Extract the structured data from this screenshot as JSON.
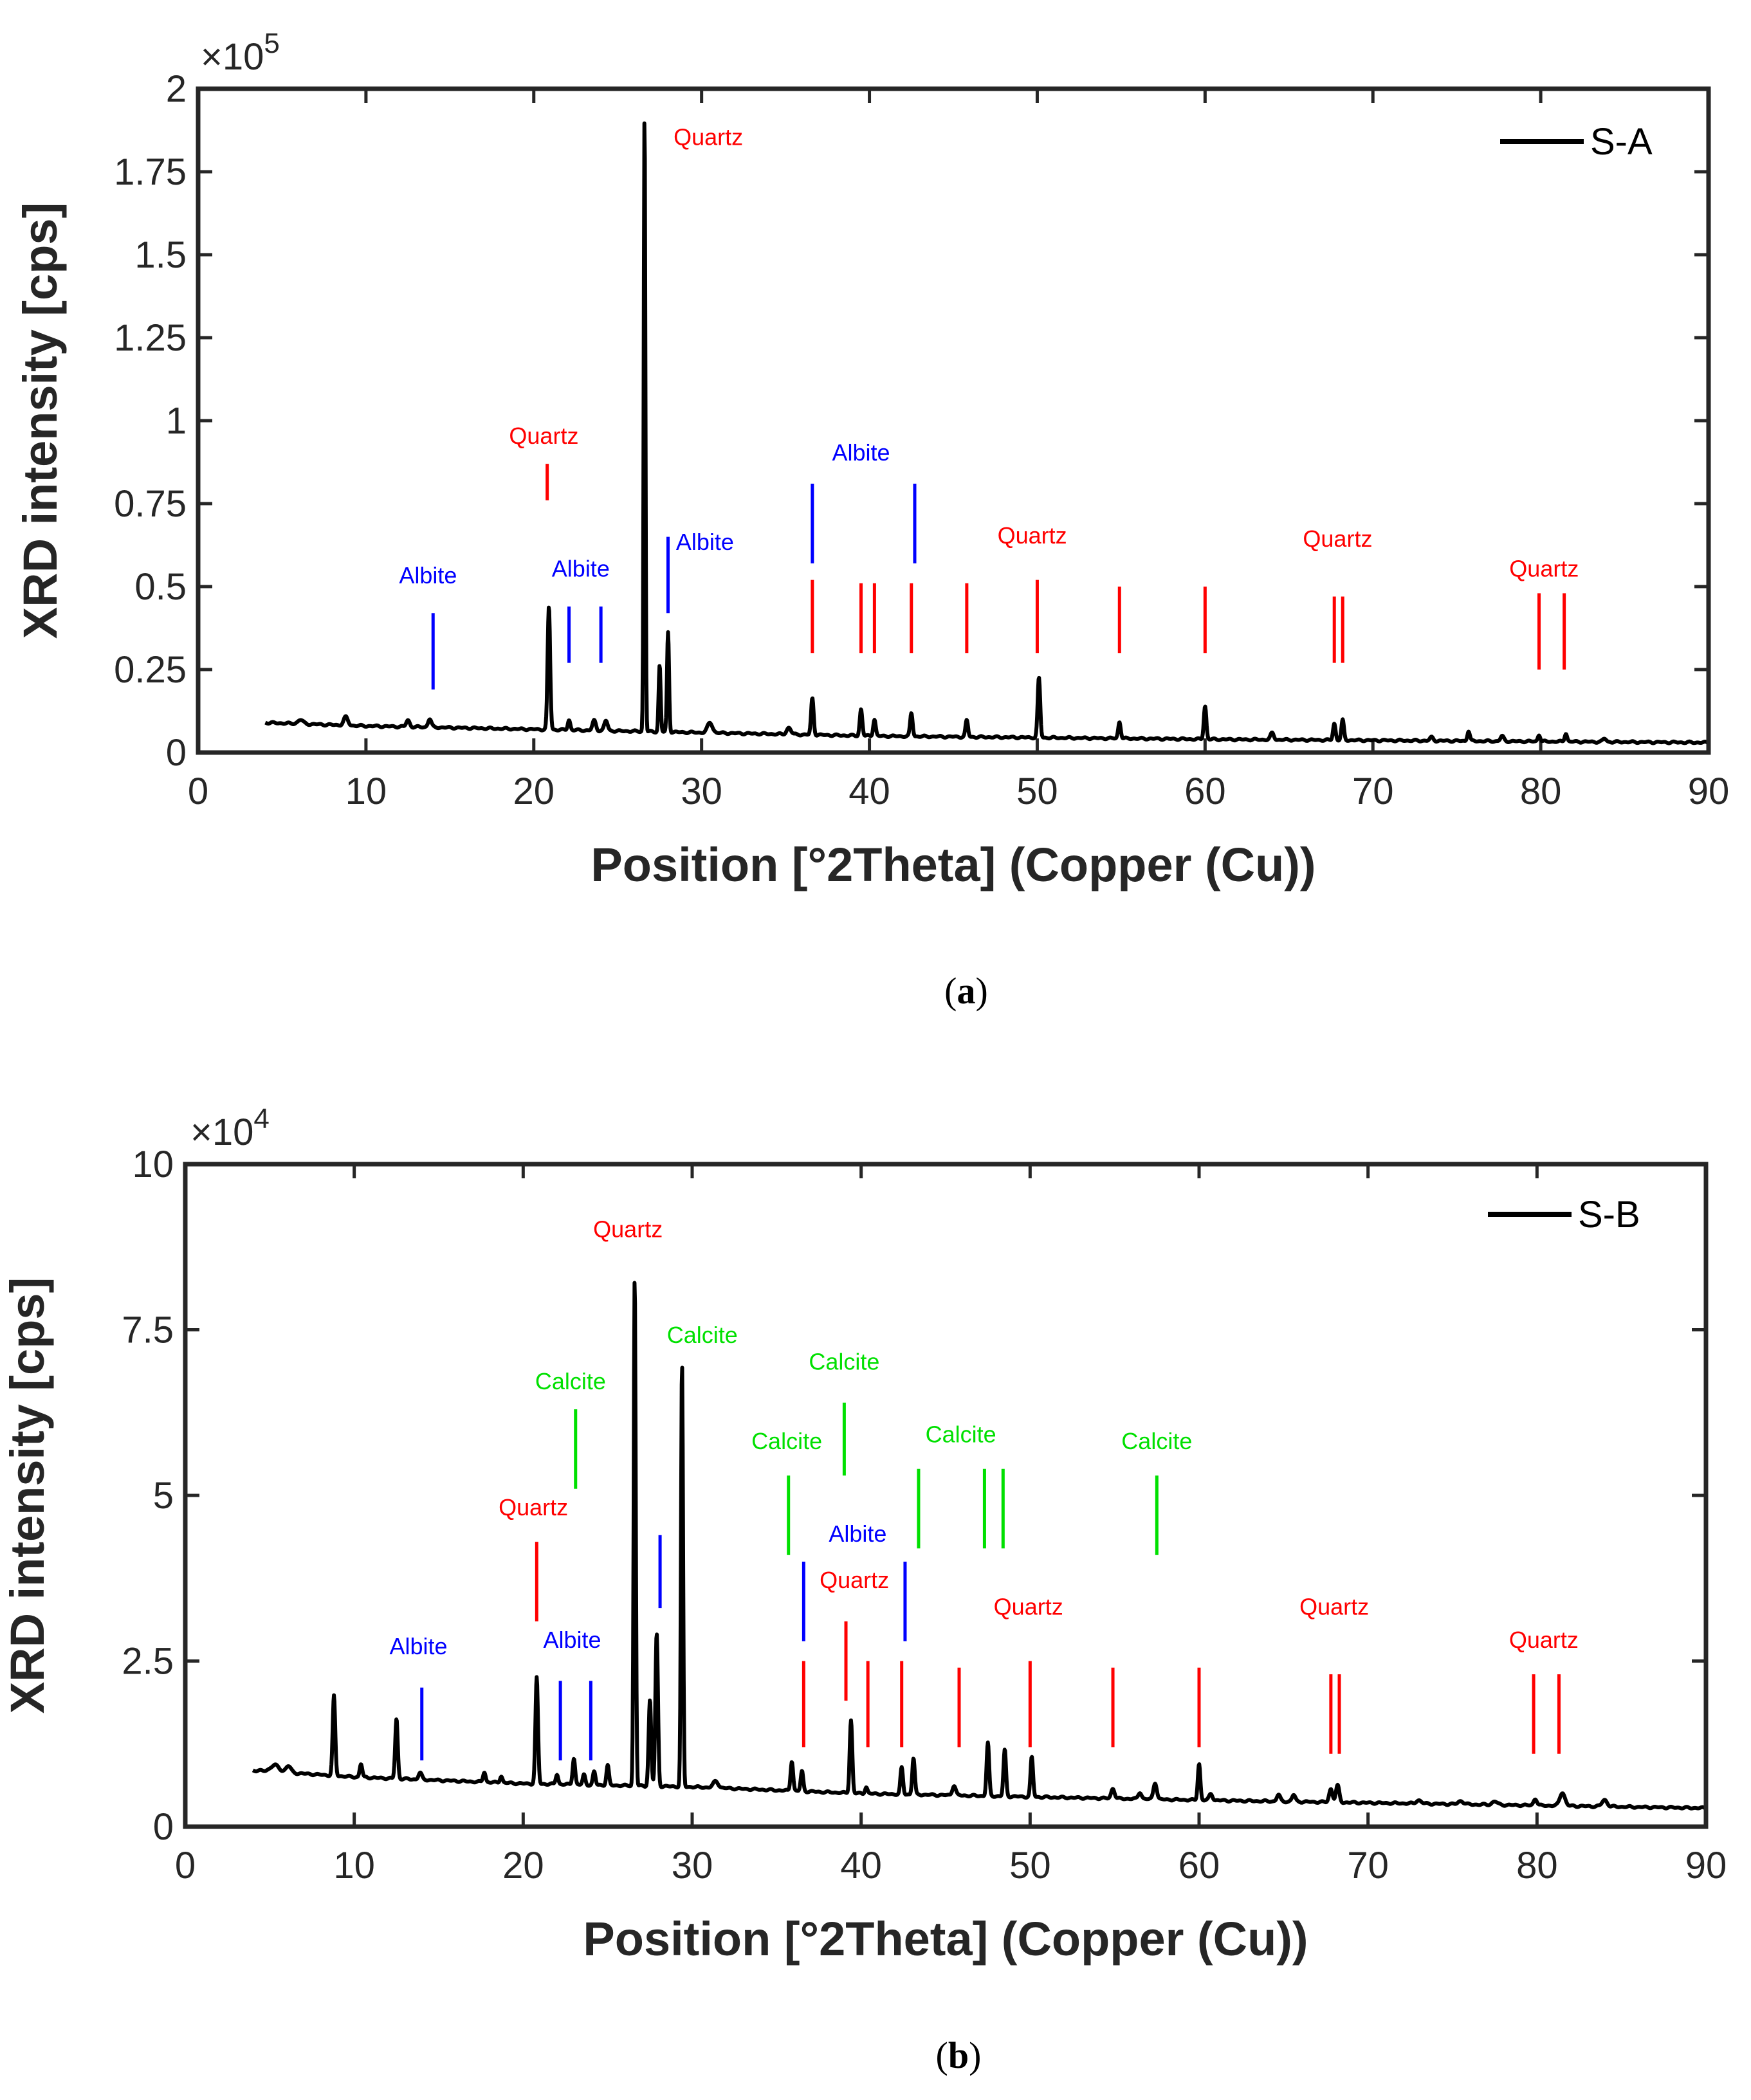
{
  "colors": {
    "quartz": "#ff0000",
    "albite": "#0000ff",
    "calcite": "#00e000",
    "trace": "#000000"
  },
  "chart_data": [
    {
      "type": "line",
      "panel": "a",
      "caption_letter": "a",
      "xlabel": "Position [°2Theta] (Copper (Cu))",
      "ylabel": "XRD intensity [cps]",
      "exponent_base": "×10",
      "exponent_power": "5",
      "xlim": [
        0,
        90
      ],
      "ylim": [
        0,
        2
      ],
      "xticks": [
        0,
        10,
        20,
        30,
        40,
        50,
        60,
        70,
        80,
        90
      ],
      "yticks": [
        0,
        0.25,
        0.5,
        0.75,
        1,
        1.25,
        1.5,
        1.75,
        2
      ],
      "ytick_labels": [
        "0",
        "0.25",
        "0.5",
        "0.75",
        "1",
        "1.25",
        "1.5",
        "1.75",
        "2"
      ],
      "series": [
        {
          "name": "S-A",
          "baseline": [
            [
              4,
              0.09
            ],
            [
              10,
              0.08
            ],
            [
              20,
              0.07
            ],
            [
              30,
              0.06
            ],
            [
              40,
              0.05
            ],
            [
              60,
              0.04
            ],
            [
              90,
              0.03
            ]
          ],
          "peaks": [
            [
              6.1,
              0.012,
              0.3
            ],
            [
              8.8,
              0.025,
              0.25
            ],
            [
              12.5,
              0.02,
              0.2
            ],
            [
              13.8,
              0.025,
              0.2
            ],
            [
              20.9,
              0.37,
              0.15
            ],
            [
              22.1,
              0.03,
              0.15
            ],
            [
              23.6,
              0.03,
              0.2
            ],
            [
              24.3,
              0.03,
              0.2
            ],
            [
              26.6,
              1.87,
              0.1
            ],
            [
              27.5,
              0.2,
              0.12
            ],
            [
              28.0,
              0.3,
              0.12
            ],
            [
              30.5,
              0.03,
              0.3
            ],
            [
              35.2,
              0.02,
              0.25
            ],
            [
              36.6,
              0.11,
              0.15
            ],
            [
              39.5,
              0.08,
              0.15
            ],
            [
              40.3,
              0.05,
              0.15
            ],
            [
              42.5,
              0.07,
              0.15
            ],
            [
              45.8,
              0.05,
              0.15
            ],
            [
              50.1,
              0.18,
              0.15
            ],
            [
              54.9,
              0.05,
              0.15
            ],
            [
              60.0,
              0.1,
              0.15
            ],
            [
              64.0,
              0.02,
              0.2
            ],
            [
              67.7,
              0.05,
              0.15
            ],
            [
              68.2,
              0.06,
              0.15
            ],
            [
              73.5,
              0.01,
              0.2
            ],
            [
              75.7,
              0.03,
              0.15
            ],
            [
              77.7,
              0.015,
              0.2
            ],
            [
              79.9,
              0.02,
              0.15
            ],
            [
              81.5,
              0.025,
              0.15
            ],
            [
              83.8,
              0.01,
              0.2
            ]
          ]
        }
      ],
      "markers": [
        {
          "mineral": "Albite",
          "x": 14.0,
          "y0": 0.19,
          "y1": 0.42
        },
        {
          "mineral": "Albite",
          "x": 22.1,
          "y0": 0.27,
          "y1": 0.44
        },
        {
          "mineral": "Albite",
          "x": 24.0,
          "y0": 0.27,
          "y1": 0.44
        },
        {
          "mineral": "Albite",
          "x": 28.0,
          "y0": 0.42,
          "y1": 0.65
        },
        {
          "mineral": "Albite",
          "x": 36.6,
          "y0": 0.57,
          "y1": 0.81
        },
        {
          "mineral": "Albite",
          "x": 42.7,
          "y0": 0.57,
          "y1": 0.81
        },
        {
          "mineral": "Quartz",
          "x": 20.8,
          "y0": 0.76,
          "y1": 0.87
        },
        {
          "mineral": "Quartz",
          "x": 36.6,
          "y0": 0.3,
          "y1": 0.52
        },
        {
          "mineral": "Quartz",
          "x": 39.5,
          "y0": 0.3,
          "y1": 0.51
        },
        {
          "mineral": "Quartz",
          "x": 40.3,
          "y0": 0.3,
          "y1": 0.51
        },
        {
          "mineral": "Quartz",
          "x": 42.5,
          "y0": 0.3,
          "y1": 0.51
        },
        {
          "mineral": "Quartz",
          "x": 45.8,
          "y0": 0.3,
          "y1": 0.51
        },
        {
          "mineral": "Quartz",
          "x": 50.0,
          "y0": 0.3,
          "y1": 0.52
        },
        {
          "mineral": "Quartz",
          "x": 54.9,
          "y0": 0.3,
          "y1": 0.5
        },
        {
          "mineral": "Quartz",
          "x": 60.0,
          "y0": 0.3,
          "y1": 0.5
        },
        {
          "mineral": "Quartz",
          "x": 67.7,
          "y0": 0.27,
          "y1": 0.47
        },
        {
          "mineral": "Quartz",
          "x": 68.2,
          "y0": 0.27,
          "y1": 0.47
        },
        {
          "mineral": "Quartz",
          "x": 79.9,
          "y0": 0.25,
          "y1": 0.48
        },
        {
          "mineral": "Quartz",
          "x": 81.4,
          "y0": 0.25,
          "y1": 0.48
        }
      ],
      "annotations": [
        {
          "text": "Quartz",
          "mineral": "Quartz",
          "x": 30.4,
          "y": 1.83
        },
        {
          "text": "Quartz",
          "mineral": "Quartz",
          "x": 20.6,
          "y": 0.93
        },
        {
          "text": "Albite",
          "mineral": "Albite",
          "x": 13.7,
          "y": 0.51
        },
        {
          "text": "Albite",
          "mineral": "Albite",
          "x": 22.8,
          "y": 0.53
        },
        {
          "text": "Albite",
          "mineral": "Albite",
          "x": 30.2,
          "y": 0.61
        },
        {
          "text": "Albite",
          "mineral": "Albite",
          "x": 39.5,
          "y": 0.88
        },
        {
          "text": "Quartz",
          "mineral": "Quartz",
          "x": 49.7,
          "y": 0.63
        },
        {
          "text": "Quartz",
          "mineral": "Quartz",
          "x": 67.9,
          "y": 0.62
        },
        {
          "text": "Quartz",
          "mineral": "Quartz",
          "x": 80.2,
          "y": 0.53
        }
      ]
    },
    {
      "type": "line",
      "panel": "b",
      "caption_letter": "b",
      "xlabel": "Position [°2Theta] (Copper (Cu))",
      "ylabel": "XRD intensity [cps]",
      "exponent_base": "×10",
      "exponent_power": "4",
      "xlim": [
        0,
        90
      ],
      "ylim": [
        0,
        10
      ],
      "xticks": [
        0,
        10,
        20,
        30,
        40,
        50,
        60,
        70,
        80,
        90
      ],
      "yticks": [
        0,
        2.5,
        5,
        7.5,
        10
      ],
      "ytick_labels": [
        "0",
        "2.5",
        "5",
        "7.5",
        "10"
      ],
      "series": [
        {
          "name": "S-B",
          "baseline": [
            [
              4,
              0.85
            ],
            [
              10,
              0.75
            ],
            [
              20,
              0.65
            ],
            [
              30,
              0.6
            ],
            [
              40,
              0.5
            ],
            [
              60,
              0.4
            ],
            [
              90,
              0.28
            ]
          ],
          "peaks": [
            [
              5.3,
              0.1,
              0.5
            ],
            [
              6.1,
              0.1,
              0.3
            ],
            [
              8.8,
              1.2,
              0.15
            ],
            [
              10.4,
              0.2,
              0.15
            ],
            [
              12.5,
              0.9,
              0.15
            ],
            [
              13.9,
              0.1,
              0.2
            ],
            [
              17.7,
              0.15,
              0.15
            ],
            [
              18.7,
              0.1,
              0.15
            ],
            [
              20.8,
              1.6,
              0.15
            ],
            [
              22.0,
              0.15,
              0.15
            ],
            [
              23.0,
              0.4,
              0.15
            ],
            [
              23.6,
              0.15,
              0.15
            ],
            [
              24.2,
              0.2,
              0.15
            ],
            [
              25.0,
              0.3,
              0.15
            ],
            [
              26.6,
              7.7,
              0.12
            ],
            [
              27.5,
              1.3,
              0.15
            ],
            [
              27.9,
              2.3,
              0.15
            ],
            [
              29.4,
              6.4,
              0.12
            ],
            [
              31.4,
              0.1,
              0.3
            ],
            [
              35.9,
              0.45,
              0.15
            ],
            [
              36.5,
              0.3,
              0.15
            ],
            [
              39.4,
              1.1,
              0.15
            ],
            [
              40.3,
              0.1,
              0.15
            ],
            [
              42.4,
              0.4,
              0.15
            ],
            [
              43.1,
              0.55,
              0.15
            ],
            [
              45.5,
              0.15,
              0.2
            ],
            [
              47.5,
              0.8,
              0.15
            ],
            [
              48.5,
              0.7,
              0.15
            ],
            [
              50.1,
              0.6,
              0.15
            ],
            [
              54.9,
              0.15,
              0.2
            ],
            [
              56.5,
              0.1,
              0.2
            ],
            [
              57.4,
              0.25,
              0.2
            ],
            [
              60.0,
              0.55,
              0.15
            ],
            [
              60.7,
              0.1,
              0.2
            ],
            [
              64.7,
              0.1,
              0.2
            ],
            [
              65.6,
              0.1,
              0.2
            ],
            [
              67.8,
              0.2,
              0.2
            ],
            [
              68.2,
              0.25,
              0.2
            ],
            [
              73.0,
              0.05,
              0.3
            ],
            [
              75.5,
              0.05,
              0.3
            ],
            [
              77.5,
              0.05,
              0.3
            ],
            [
              79.9,
              0.1,
              0.2
            ],
            [
              81.5,
              0.2,
              0.3
            ],
            [
              84.0,
              0.1,
              0.3
            ]
          ]
        }
      ],
      "markers": [
        {
          "mineral": "Albite",
          "x": 14.0,
          "y0": 1.0,
          "y1": 2.1
        },
        {
          "mineral": "Albite",
          "x": 22.2,
          "y0": 1.0,
          "y1": 2.2
        },
        {
          "mineral": "Albite",
          "x": 24.0,
          "y0": 1.0,
          "y1": 2.2
        },
        {
          "mineral": "Albite",
          "x": 28.1,
          "y0": 3.3,
          "y1": 4.4
        },
        {
          "mineral": "Albite",
          "x": 36.6,
          "y0": 2.8,
          "y1": 4.0
        },
        {
          "mineral": "Albite",
          "x": 42.6,
          "y0": 2.8,
          "y1": 4.0
        },
        {
          "mineral": "Quartz",
          "x": 20.8,
          "y0": 3.1,
          "y1": 4.3
        },
        {
          "mineral": "Quartz",
          "x": 36.6,
          "y0": 1.2,
          "y1": 2.5
        },
        {
          "mineral": "Quartz",
          "x": 39.1,
          "y0": 1.9,
          "y1": 3.1
        },
        {
          "mineral": "Quartz",
          "x": 40.4,
          "y0": 1.2,
          "y1": 2.5
        },
        {
          "mineral": "Quartz",
          "x": 42.4,
          "y0": 1.2,
          "y1": 2.5
        },
        {
          "mineral": "Quartz",
          "x": 45.8,
          "y0": 1.2,
          "y1": 2.4
        },
        {
          "mineral": "Quartz",
          "x": 50.0,
          "y0": 1.2,
          "y1": 2.5
        },
        {
          "mineral": "Quartz",
          "x": 54.9,
          "y0": 1.2,
          "y1": 2.4
        },
        {
          "mineral": "Quartz",
          "x": 60.0,
          "y0": 1.2,
          "y1": 2.4
        },
        {
          "mineral": "Quartz",
          "x": 67.8,
          "y0": 1.1,
          "y1": 2.3
        },
        {
          "mineral": "Quartz",
          "x": 68.3,
          "y0": 1.1,
          "y1": 2.3
        },
        {
          "mineral": "Quartz",
          "x": 79.8,
          "y0": 1.1,
          "y1": 2.3
        },
        {
          "mineral": "Quartz",
          "x": 81.3,
          "y0": 1.1,
          "y1": 2.3
        },
        {
          "mineral": "Calcite",
          "x": 23.1,
          "y0": 5.1,
          "y1": 6.3
        },
        {
          "mineral": "Calcite",
          "x": 35.7,
          "y0": 4.1,
          "y1": 5.3
        },
        {
          "mineral": "Calcite",
          "x": 39.0,
          "y0": 5.3,
          "y1": 6.4
        },
        {
          "mineral": "Calcite",
          "x": 43.4,
          "y0": 4.2,
          "y1": 5.4
        },
        {
          "mineral": "Calcite",
          "x": 47.3,
          "y0": 4.2,
          "y1": 5.4
        },
        {
          "mineral": "Calcite",
          "x": 48.4,
          "y0": 4.2,
          "y1": 5.4
        },
        {
          "mineral": "Calcite",
          "x": 57.5,
          "y0": 4.1,
          "y1": 5.3
        }
      ],
      "annotations": [
        {
          "text": "Quartz",
          "mineral": "Quartz",
          "x": 26.2,
          "y": 8.9
        },
        {
          "text": "Calcite",
          "mineral": "Calcite",
          "x": 30.6,
          "y": 7.3
        },
        {
          "text": "Calcite",
          "mineral": "Calcite",
          "x": 22.8,
          "y": 6.6
        },
        {
          "text": "Calcite",
          "mineral": "Calcite",
          "x": 39.0,
          "y": 6.9
        },
        {
          "text": "Calcite",
          "mineral": "Calcite",
          "x": 35.6,
          "y": 5.7
        },
        {
          "text": "Calcite",
          "mineral": "Calcite",
          "x": 45.9,
          "y": 5.8
        },
        {
          "text": "Calcite",
          "mineral": "Calcite",
          "x": 57.5,
          "y": 5.7
        },
        {
          "text": "Quartz",
          "mineral": "Quartz",
          "x": 20.6,
          "y": 4.7
        },
        {
          "text": "Albite",
          "mineral": "Albite",
          "x": 39.8,
          "y": 4.3
        },
        {
          "text": "Quartz",
          "mineral": "Quartz",
          "x": 39.6,
          "y": 3.6
        },
        {
          "text": "Albite",
          "mineral": "Albite",
          "x": 13.8,
          "y": 2.6
        },
        {
          "text": "Albite",
          "mineral": "Albite",
          "x": 22.9,
          "y": 2.7
        },
        {
          "text": "Quartz",
          "mineral": "Quartz",
          "x": 49.9,
          "y": 3.2
        },
        {
          "text": "Quartz",
          "mineral": "Quartz",
          "x": 68.0,
          "y": 3.2
        },
        {
          "text": "Quartz",
          "mineral": "Quartz",
          "x": 80.4,
          "y": 2.7
        }
      ]
    }
  ]
}
